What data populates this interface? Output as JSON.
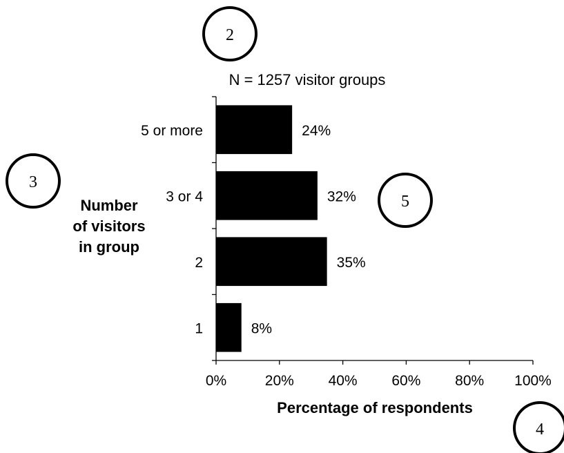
{
  "chart_data": {
    "type": "bar",
    "orientation": "horizontal",
    "subtitle": "N = 1257 visitor groups",
    "ylabel_lines": [
      "Number",
      "of visitors",
      "in group"
    ],
    "xlabel": "Percentage of respondents",
    "categories": [
      "5 or more",
      "3 or 4",
      "2",
      "1"
    ],
    "values": [
      24,
      32,
      35,
      8
    ],
    "data_labels": [
      "24%",
      "32%",
      "35%",
      "8%"
    ],
    "xlim": [
      0,
      100
    ],
    "xticks": [
      0,
      20,
      40,
      60,
      80,
      100
    ],
    "xtick_labels": [
      "0%",
      "20%",
      "40%",
      "60%",
      "80%",
      "100%"
    ],
    "grid": false,
    "legend": "none",
    "bar_color": "#000000"
  },
  "markers": [
    {
      "id": "marker-2",
      "label": "2"
    },
    {
      "id": "marker-3",
      "label": "3"
    },
    {
      "id": "marker-4",
      "label": "4"
    },
    {
      "id": "marker-5",
      "label": "5"
    }
  ]
}
